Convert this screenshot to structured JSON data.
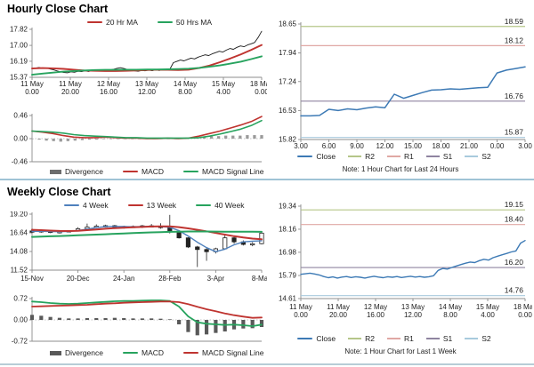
{
  "hourly": {
    "title": "Hourly Close Chart",
    "note": "Note: 1 Hour Chart for Last 24 Hours"
  },
  "weekly": {
    "title": "Weekly Close Chart",
    "note": "Note: 1 Hour Chart for Last 1 Week"
  },
  "chart_data": [
    {
      "id": "hourly-close",
      "type": "line",
      "title": "Hourly Close Chart",
      "ylim": [
        15.37,
        17.82
      ],
      "yticks": [
        [
          15.37,
          "15.37"
        ],
        [
          16.19,
          "16.19"
        ],
        [
          17.0,
          "17.00"
        ],
        [
          17.82,
          "17.82"
        ]
      ],
      "xlabels": [
        "11 May|0.00",
        "11 May|20.00",
        "12 May|16.00",
        "13 May|12.00",
        "14 May|8.00",
        "15 May|4.00",
        "18 May|0.00"
      ],
      "series": [
        {
          "name": "Close",
          "color": "#1a1a1a",
          "width": 0.9,
          "values": [
            15.8,
            15.84,
            15.87,
            15.83,
            15.85,
            15.8,
            15.76,
            15.7,
            15.65,
            15.62,
            15.6,
            15.65,
            15.63,
            15.68,
            15.66,
            15.7,
            15.67,
            15.72,
            15.69,
            15.71,
            15.73,
            15.7,
            15.74,
            15.78,
            15.83,
            15.86,
            15.82,
            15.77,
            15.73,
            15.7,
            15.68,
            15.72,
            15.7,
            15.74,
            15.71,
            15.75,
            15.72,
            15.76,
            15.74,
            15.78,
            16.12,
            16.18,
            16.25,
            16.21,
            16.28,
            16.35,
            16.31,
            16.4,
            16.46,
            16.52,
            16.48,
            16.57,
            16.63,
            16.7,
            16.66,
            16.76,
            16.84,
            16.8,
            16.9,
            16.97,
            16.93,
            17.02,
            17.08,
            17.15,
            17.4,
            17.72
          ]
        },
        {
          "name": "20 Hr MA",
          "color": "#bf3430",
          "width": 1.9,
          "values": [
            15.82,
            15.84,
            15.83,
            15.8,
            15.76,
            15.72,
            15.7,
            15.69,
            15.69,
            15.7,
            15.72,
            15.74,
            15.76,
            15.75,
            15.74,
            15.76,
            15.84,
            15.97,
            16.14,
            16.33,
            16.54,
            16.77,
            17.02
          ]
        },
        {
          "name": "50 Hrs MA",
          "color": "#27a35e",
          "width": 1.9,
          "values": [
            15.5,
            15.56,
            15.61,
            15.66,
            15.69,
            15.72,
            15.74,
            15.75,
            15.75,
            15.76,
            15.76,
            15.77,
            15.77,
            15.78,
            15.79,
            15.81,
            15.85,
            15.91,
            15.98,
            16.07,
            16.17,
            16.3,
            16.44
          ]
        }
      ]
    },
    {
      "id": "hourly-macd",
      "type": "macd",
      "ylim": [
        -0.46,
        0.46
      ],
      "yticks": [
        [
          0.46,
          "0.46"
        ],
        [
          0,
          "0.00"
        ],
        [
          -0.46,
          "-0.46"
        ]
      ],
      "zero_line": true,
      "bars": {
        "name": "Divergence",
        "color": "#9a9a9a",
        "swatch_color": "#6d6d6d",
        "values": [
          0.0,
          -0.02,
          -0.04,
          -0.05,
          -0.06,
          -0.05,
          -0.04,
          -0.03,
          -0.02,
          -0.02,
          -0.01,
          -0.01,
          -0.01,
          -0.01,
          -0.01,
          -0.01,
          0.0,
          0.0,
          0.0,
          0.0,
          0.0,
          0.01,
          0.02,
          0.03,
          0.04,
          0.05,
          0.05,
          0.06,
          0.06,
          0.06,
          0.07,
          0.07,
          0.07
        ]
      },
      "series": [
        {
          "name": "MACD",
          "color": "#bf3430",
          "width": 1.6,
          "values": [
            0.15,
            0.13,
            0.1,
            0.06,
            0.03,
            0.02,
            0.02,
            0.03,
            0.02,
            0.01,
            0.01,
            0.0,
            0.0,
            0.01,
            0.0,
            0.01,
            0.05,
            0.1,
            0.15,
            0.21,
            0.27,
            0.34,
            0.44
          ]
        },
        {
          "name": "MACD Signal Line",
          "color": "#27a35e",
          "width": 1.6,
          "values": [
            0.15,
            0.14,
            0.13,
            0.11,
            0.08,
            0.06,
            0.05,
            0.04,
            0.03,
            0.02,
            0.02,
            0.01,
            0.01,
            0.01,
            0.01,
            0.01,
            0.02,
            0.05,
            0.09,
            0.14,
            0.19,
            0.26,
            0.36
          ]
        }
      ]
    },
    {
      "id": "hourly-pivot",
      "type": "line",
      "ylim": [
        15.82,
        18.65
      ],
      "yticks": [
        [
          15.82,
          "15.82"
        ],
        [
          16.53,
          "16.53"
        ],
        [
          17.24,
          "17.24"
        ],
        [
          17.94,
          "17.94"
        ],
        [
          18.65,
          "18.65"
        ]
      ],
      "xlabels": [
        "3.00",
        "6.00",
        "9.00",
        "12.00",
        "15.00",
        "18.00",
        "21.00",
        "0.00",
        "3.00"
      ],
      "series": [
        {
          "name": "Close",
          "color": "#3d7ab5",
          "width": 1.5,
          "values": [
            16.4,
            16.4,
            16.41,
            16.56,
            16.53,
            16.57,
            16.55,
            16.59,
            16.62,
            16.6,
            16.93,
            16.83,
            16.9,
            16.97,
            17.03,
            17.04,
            17.06,
            17.05,
            17.07,
            17.09,
            17.1,
            17.45,
            17.52,
            17.56,
            17.6
          ]
        }
      ],
      "hlines": [
        {
          "name": "R2",
          "value": 18.59,
          "label": "18.59",
          "color": "#b5c689"
        },
        {
          "name": "R1",
          "value": 18.12,
          "label": "18.12",
          "color": "#e0a8a4"
        },
        {
          "name": "S1",
          "value": 16.76,
          "label": "16.76",
          "color": "#8f84a0"
        },
        {
          "name": "S2",
          "value": 15.87,
          "label": "15.87",
          "color": "#a8cadd"
        }
      ],
      "note": "Note: 1 Hour Chart for Last 24 Hours"
    },
    {
      "id": "weekly-close",
      "type": "candlestick",
      "title": "Weekly Close Chart",
      "ylim": [
        11.52,
        19.2
      ],
      "yticks": [
        [
          11.52,
          "11.52"
        ],
        [
          14.08,
          "14.08"
        ],
        [
          16.64,
          "16.64"
        ],
        [
          19.2,
          "19.20"
        ]
      ],
      "xlabels": [
        "15-Nov",
        "20-Dec",
        "24-Jan",
        "28-Feb",
        "3-Apr",
        "8-May"
      ],
      "candles_ohlc": [
        [
          16.9,
          17.2,
          16.6,
          16.8
        ],
        [
          16.8,
          17.0,
          16.65,
          16.92
        ],
        [
          16.95,
          17.05,
          16.6,
          16.68
        ],
        [
          16.68,
          16.9,
          16.55,
          16.8
        ],
        [
          16.8,
          17.0,
          16.7,
          16.92
        ],
        [
          16.92,
          17.4,
          16.85,
          17.2
        ],
        [
          17.2,
          17.9,
          17.1,
          17.42
        ],
        [
          17.42,
          17.8,
          17.25,
          17.55
        ],
        [
          17.55,
          17.75,
          17.4,
          17.62
        ],
        [
          17.62,
          17.72,
          17.3,
          17.4
        ],
        [
          17.4,
          17.62,
          17.22,
          17.52
        ],
        [
          17.52,
          17.65,
          17.32,
          17.42
        ],
        [
          17.42,
          17.72,
          17.3,
          17.6
        ],
        [
          17.6,
          17.85,
          17.42,
          17.52
        ],
        [
          17.52,
          17.95,
          17.2,
          17.35
        ],
        [
          17.35,
          19.1,
          16.55,
          16.85
        ],
        [
          16.85,
          17.0,
          15.85,
          15.95
        ],
        [
          15.95,
          16.05,
          14.55,
          14.7
        ],
        [
          14.7,
          14.85,
          11.95,
          14.35
        ],
        [
          14.35,
          14.55,
          12.8,
          14.05
        ],
        [
          14.05,
          14.6,
          13.8,
          14.45
        ],
        [
          14.45,
          16.3,
          14.35,
          15.95
        ],
        [
          15.95,
          16.1,
          15.15,
          15.4
        ],
        [
          15.4,
          15.6,
          14.9,
          15.05
        ],
        [
          15.05,
          15.35,
          14.8,
          15.15
        ],
        [
          15.15,
          16.8,
          15.05,
          16.6
        ]
      ],
      "series": [
        {
          "name": "4 Week",
          "color": "#4f81bd",
          "width": 1.4,
          "values": [
            16.85,
            16.85,
            16.82,
            16.8,
            16.83,
            16.95,
            17.15,
            17.35,
            17.5,
            17.52,
            17.5,
            17.47,
            17.5,
            17.54,
            17.5,
            17.4,
            16.95,
            16.2,
            15.35,
            14.6,
            14.05,
            14.4,
            15.0,
            15.4,
            15.5,
            15.55
          ]
        },
        {
          "name": "13 Week",
          "color": "#bf3430",
          "width": 2.0,
          "values": [
            17.05,
            17.0,
            16.95,
            16.9,
            16.88,
            16.92,
            17.0,
            17.1,
            17.2,
            17.28,
            17.35,
            17.4,
            17.45,
            17.5,
            17.52,
            17.52,
            17.42,
            17.25,
            17.05,
            16.85,
            16.62,
            16.4,
            16.18,
            16.0,
            15.85,
            15.75
          ]
        },
        {
          "name": "40 Week",
          "color": "#27a35e",
          "width": 2.0,
          "values": [
            16.08,
            16.12,
            16.16,
            16.2,
            16.25,
            16.3,
            16.35,
            16.4,
            16.45,
            16.5,
            16.55,
            16.6,
            16.65,
            16.7,
            16.74,
            16.78,
            16.8,
            16.82,
            16.82,
            16.82,
            16.81,
            16.8,
            16.8,
            16.79,
            16.79,
            16.78
          ]
        }
      ]
    },
    {
      "id": "weekly-macd",
      "type": "macd",
      "ylim": [
        -0.72,
        0.72
      ],
      "yticks": [
        [
          0.72,
          "0.72"
        ],
        [
          0,
          "0.00"
        ],
        [
          -0.72,
          "-0.72"
        ]
      ],
      "zero_line": true,
      "bars": {
        "name": "Divergence",
        "color": "#595959",
        "swatch_color": "#595959",
        "values": [
          0.17,
          0.14,
          0.1,
          0.07,
          0.05,
          0.05,
          0.06,
          0.06,
          0.06,
          0.07,
          0.06,
          0.05,
          0.05,
          0.05,
          0.04,
          0.02,
          -0.15,
          -0.41,
          -0.52,
          -0.49,
          -0.44,
          -0.39,
          -0.32,
          -0.29,
          -0.28,
          -0.24
        ]
      },
      "series": [
        {
          "name": "MACD",
          "color": "#27a35e",
          "width": 1.8,
          "values": [
            0.62,
            0.6,
            0.57,
            0.55,
            0.54,
            0.55,
            0.57,
            0.59,
            0.61,
            0.63,
            0.64,
            0.64,
            0.65,
            0.66,
            0.66,
            0.64,
            0.45,
            0.12,
            -0.08,
            -0.13,
            -0.15,
            -0.17,
            -0.16,
            -0.18,
            -0.21,
            -0.16
          ]
        },
        {
          "name": "MACD Signal Line",
          "color": "#bf3430",
          "width": 1.8,
          "values": [
            0.45,
            0.46,
            0.47,
            0.48,
            0.49,
            0.5,
            0.51,
            0.53,
            0.55,
            0.56,
            0.58,
            0.59,
            0.6,
            0.61,
            0.62,
            0.62,
            0.6,
            0.53,
            0.44,
            0.36,
            0.29,
            0.22,
            0.16,
            0.11,
            0.07,
            0.08
          ]
        }
      ]
    },
    {
      "id": "weekly-pivot",
      "type": "line",
      "ylim": [
        14.61,
        19.34
      ],
      "yticks": [
        [
          14.61,
          "14.61"
        ],
        [
          15.79,
          "15.79"
        ],
        [
          16.98,
          "16.98"
        ],
        [
          18.16,
          "18.16"
        ],
        [
          19.34,
          "19.34"
        ]
      ],
      "xlabels": [
        "11 May|0.00",
        "11 May|20.00",
        "12 May|16.00",
        "13 May|12.00",
        "14 May|8.00",
        "15 May|4.00",
        "18 May|0.00"
      ],
      "series": [
        {
          "name": "Close",
          "color": "#3d7ab5",
          "width": 1.4,
          "values": [
            15.85,
            15.88,
            15.91,
            15.87,
            15.82,
            15.74,
            15.68,
            15.72,
            15.66,
            15.71,
            15.74,
            15.69,
            15.73,
            15.7,
            15.66,
            15.71,
            15.75,
            15.71,
            15.68,
            15.73,
            15.7,
            15.74,
            15.69,
            15.72,
            15.75,
            15.71,
            15.74,
            15.7,
            15.73,
            15.78,
            16.05,
            16.15,
            16.12,
            16.2,
            16.28,
            16.35,
            16.42,
            16.48,
            16.45,
            16.55,
            16.62,
            16.58,
            16.7,
            16.78,
            16.85,
            16.92,
            17.0,
            17.05,
            17.45,
            17.58
          ]
        }
      ],
      "hlines": [
        {
          "name": "R2",
          "value": 19.15,
          "label": "19.15",
          "color": "#b5c689"
        },
        {
          "name": "R1",
          "value": 18.4,
          "label": "18.40",
          "color": "#e0a8a4"
        },
        {
          "name": "S1",
          "value": 16.2,
          "label": "16.20",
          "color": "#8f84a0"
        },
        {
          "name": "S2",
          "value": 14.76,
          "label": "14.76",
          "color": "#a8cadd"
        }
      ],
      "note": "Note: 1 Hour Chart for Last 1 Week"
    }
  ]
}
